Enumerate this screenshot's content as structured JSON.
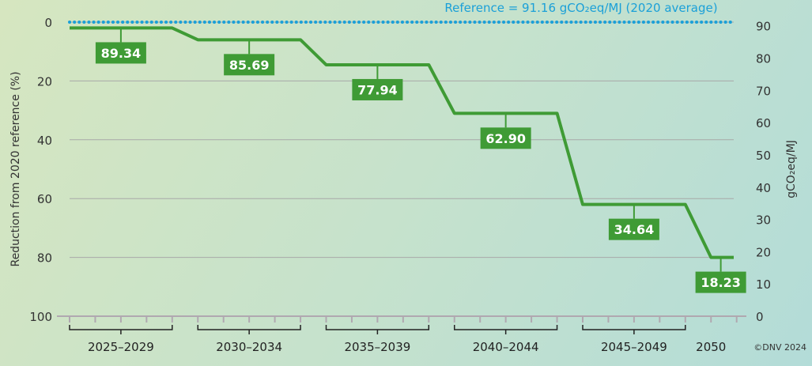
{
  "chart_data": {
    "type": "line",
    "step": true,
    "title": "",
    "ylabel_left": "Reduction from 2020 reference (%)",
    "ylabel_right": "gCO₂eq/MJ",
    "ylim_left": [
      100,
      0
    ],
    "ylim_right": [
      0,
      90
    ],
    "yticks_left": [
      0,
      20,
      40,
      60,
      80,
      100
    ],
    "yticks_right": [
      0,
      10,
      20,
      30,
      40,
      50,
      60,
      70,
      80,
      90
    ],
    "grid": true,
    "categories": [
      "2025–2029",
      "2030–2034",
      "2035–2039",
      "2040–2044",
      "2045–2049",
      "2050"
    ],
    "periods": [
      [
        2025,
        2029
      ],
      [
        2030,
        2034
      ],
      [
        2035,
        2039
      ],
      [
        2040,
        2044
      ],
      [
        2045,
        2049
      ],
      [
        2050,
        2050
      ]
    ],
    "values": [
      89.34,
      85.69,
      77.94,
      62.9,
      34.64,
      18.23
    ],
    "value_labels": [
      "89.34",
      "85.69",
      "77.94",
      "62.90",
      "34.64",
      "18.23"
    ],
    "reference": {
      "value": 91.16,
      "label": "Reference = 91.16 gCO₂eq/MJ (2020 average)"
    },
    "colors": {
      "line": "#3f9b35",
      "reference": "#1ba0d8",
      "grid": "#a8a8a8"
    },
    "credit": "©DNV 2024"
  }
}
